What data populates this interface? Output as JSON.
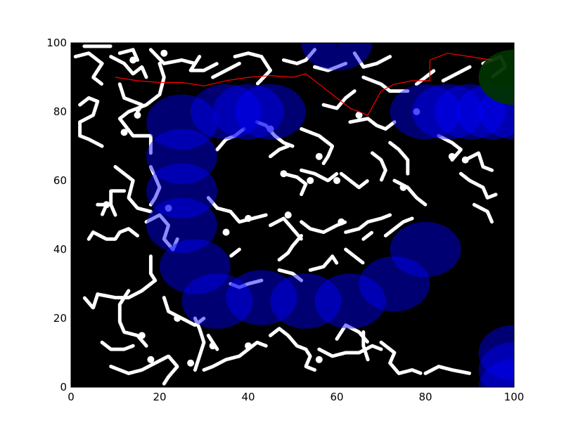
{
  "chart_data": {
    "type": "scatter",
    "xlim": [
      0,
      100
    ],
    "ylim": [
      0,
      100
    ],
    "grid": false,
    "background": "#000000",
    "x_ticks": [
      0,
      20,
      40,
      60,
      80,
      100
    ],
    "y_ticks": [
      0,
      20,
      40,
      60,
      80,
      100
    ],
    "x_tick_labels": [
      "0",
      "20",
      "40",
      "60",
      "80",
      "100"
    ],
    "y_tick_labels": [
      "0",
      "20",
      "40",
      "60",
      "80",
      "100"
    ],
    "obstacle_color": "#ffffff",
    "circle_color": "#0000ff",
    "goal_color": "#003300",
    "path_color": "#ff0000",
    "circle_radius": 8,
    "circles": [
      {
        "x": 60,
        "y": 100
      },
      {
        "x": 25,
        "y": 77
      },
      {
        "x": 35,
        "y": 80
      },
      {
        "x": 40,
        "y": 80
      },
      {
        "x": 45,
        "y": 80
      },
      {
        "x": 25,
        "y": 67
      },
      {
        "x": 25,
        "y": 57
      },
      {
        "x": 25,
        "y": 47
      },
      {
        "x": 28,
        "y": 35
      },
      {
        "x": 33,
        "y": 25
      },
      {
        "x": 43,
        "y": 26
      },
      {
        "x": 53,
        "y": 25
      },
      {
        "x": 63,
        "y": 25
      },
      {
        "x": 73,
        "y": 30
      },
      {
        "x": 80,
        "y": 40
      },
      {
        "x": 80,
        "y": 80
      },
      {
        "x": 85,
        "y": 80
      },
      {
        "x": 90,
        "y": 80
      },
      {
        "x": 95,
        "y": 80
      },
      {
        "x": 100,
        "y": 80
      },
      {
        "x": 100,
        "y": 10
      },
      {
        "x": 100,
        "y": 5
      },
      {
        "x": 100,
        "y": 0
      }
    ],
    "goal": {
      "x": 100,
      "y": 90
    },
    "path": [
      {
        "x": 10,
        "y": 90
      },
      {
        "x": 15,
        "y": 89
      },
      {
        "x": 20,
        "y": 88.5
      },
      {
        "x": 25,
        "y": 88.5
      },
      {
        "x": 30,
        "y": 87.5
      },
      {
        "x": 35,
        "y": 89
      },
      {
        "x": 40,
        "y": 90
      },
      {
        "x": 45,
        "y": 90.5
      },
      {
        "x": 50,
        "y": 90
      },
      {
        "x": 53,
        "y": 91
      },
      {
        "x": 57,
        "y": 87
      },
      {
        "x": 60,
        "y": 84
      },
      {
        "x": 63,
        "y": 81
      },
      {
        "x": 67,
        "y": 79
      },
      {
        "x": 70,
        "y": 86
      },
      {
        "x": 73,
        "y": 88
      },
      {
        "x": 77,
        "y": 89
      },
      {
        "x": 81,
        "y": 89
      },
      {
        "x": 81,
        "y": 95
      },
      {
        "x": 85,
        "y": 97
      },
      {
        "x": 90,
        "y": 96
      },
      {
        "x": 95,
        "y": 95
      }
    ],
    "obstacles": [
      [
        [
          1,
          96
        ],
        [
          4,
          97
        ],
        [
          7,
          94
        ],
        [
          5,
          90
        ],
        [
          7,
          88
        ]
      ],
      [
        [
          3,
          99
        ],
        [
          6,
          99
        ],
        [
          9,
          99
        ]
      ],
      [
        [
          9,
          96
        ],
        [
          12,
          94
        ],
        [
          14,
          91
        ],
        [
          16,
          93
        ],
        [
          17,
          90
        ]
      ],
      [
        [
          2,
          82
        ],
        [
          4,
          84
        ],
        [
          6,
          83
        ],
        [
          5,
          79
        ],
        [
          2,
          77
        ],
        [
          2,
          73
        ],
        [
          4,
          72
        ],
        [
          7,
          70
        ]
      ],
      [
        [
          11,
          97
        ],
        [
          14,
          98
        ],
        [
          15,
          95
        ]
      ],
      [
        [
          18,
          98
        ],
        [
          21,
          94
        ],
        [
          25,
          95
        ],
        [
          28,
          94
        ]
      ],
      [
        [
          20,
          94
        ],
        [
          21,
          90
        ],
        [
          20,
          85
        ],
        [
          17,
          82
        ],
        [
          13,
          80
        ],
        [
          11,
          78
        ],
        [
          14,
          73
        ],
        [
          18,
          73
        ],
        [
          18,
          68
        ]
      ],
      [
        [
          15,
          80
        ],
        [
          16,
          82
        ],
        [
          12,
          84
        ],
        [
          11,
          88
        ]
      ],
      [
        [
          29,
          96
        ],
        [
          27,
          92
        ],
        [
          30,
          92
        ],
        [
          33,
          94
        ]
      ],
      [
        [
          32,
          90
        ],
        [
          35,
          92
        ],
        [
          38,
          94
        ]
      ],
      [
        [
          37,
          96
        ],
        [
          40,
          97
        ],
        [
          43,
          96
        ],
        [
          45,
          92
        ],
        [
          42,
          88
        ]
      ],
      [
        [
          48,
          95
        ],
        [
          51,
          94
        ],
        [
          53,
          95
        ],
        [
          55,
          98
        ]
      ],
      [
        [
          55,
          93
        ],
        [
          58,
          92
        ],
        [
          62,
          94
        ]
      ],
      [
        [
          64,
          97
        ],
        [
          66,
          93
        ],
        [
          69,
          94
        ],
        [
          72,
          96
        ]
      ],
      [
        [
          66,
          90
        ],
        [
          70,
          88
        ],
        [
          72,
          86
        ],
        [
          76,
          86
        ]
      ],
      [
        [
          57,
          82
        ],
        [
          60,
          81
        ],
        [
          62,
          84
        ],
        [
          64,
          86
        ]
      ],
      [
        [
          63,
          77
        ],
        [
          67,
          78
        ],
        [
          69,
          76
        ],
        [
          71,
          75
        ],
        [
          73,
          77
        ]
      ],
      [
        [
          78,
          88
        ],
        [
          80,
          90
        ],
        [
          82,
          92
        ]
      ],
      [
        [
          84,
          89
        ],
        [
          87,
          91
        ],
        [
          90,
          93
        ]
      ],
      [
        [
          93,
          94
        ],
        [
          97,
          96
        ],
        [
          98,
          93
        ],
        [
          95,
          90
        ]
      ],
      [
        [
          10,
          64
        ],
        [
          12,
          62
        ],
        [
          14,
          60
        ],
        [
          13,
          55
        ],
        [
          15,
          52
        ],
        [
          18,
          51
        ]
      ],
      [
        [
          12,
          57
        ],
        [
          9,
          57
        ],
        [
          9,
          53
        ],
        [
          10,
          50
        ]
      ],
      [
        [
          15,
          44
        ],
        [
          13,
          46
        ],
        [
          11,
          45
        ],
        [
          10,
          43
        ],
        [
          8,
          43
        ],
        [
          5,
          45
        ],
        [
          4,
          43
        ]
      ],
      [
        [
          6,
          53
        ],
        [
          8,
          53
        ],
        [
          7,
          50
        ]
      ],
      [
        [
          18,
          64
        ],
        [
          19,
          61
        ],
        [
          20,
          58
        ],
        [
          19,
          55
        ],
        [
          18,
          53
        ]
      ],
      [
        [
          17,
          48
        ],
        [
          20,
          50
        ],
        [
          22,
          47
        ],
        [
          21,
          43
        ],
        [
          23,
          40
        ],
        [
          24,
          43
        ]
      ],
      [
        [
          18,
          38
        ],
        [
          18,
          33
        ],
        [
          19,
          31
        ],
        [
          16,
          28
        ],
        [
          13,
          26
        ],
        [
          10,
          26
        ],
        [
          6,
          27
        ],
        [
          5,
          23
        ],
        [
          3,
          26
        ]
      ],
      [
        [
          13,
          28
        ],
        [
          11,
          24
        ],
        [
          11,
          19
        ],
        [
          12,
          16
        ],
        [
          15,
          15
        ],
        [
          17,
          12
        ]
      ],
      [
        [
          7,
          13
        ],
        [
          9,
          11
        ],
        [
          12,
          11
        ],
        [
          14,
          12
        ]
      ],
      [
        [
          21,
          26
        ],
        [
          22,
          22
        ],
        [
          25,
          20
        ],
        [
          28,
          18
        ],
        [
          30,
          20
        ]
      ],
      [
        [
          28,
          20
        ],
        [
          29,
          17
        ],
        [
          30,
          13
        ],
        [
          29,
          9
        ],
        [
          28,
          5
        ]
      ],
      [
        [
          9,
          6
        ],
        [
          13,
          4
        ],
        [
          16,
          5
        ],
        [
          19,
          7
        ],
        [
          22,
          9
        ],
        [
          24,
          6
        ],
        [
          22,
          3
        ],
        [
          21,
          1
        ]
      ],
      [
        [
          30,
          5
        ],
        [
          32,
          6
        ],
        [
          35,
          8
        ],
        [
          38,
          9
        ],
        [
          40,
          11
        ],
        [
          42,
          13
        ],
        [
          44,
          12
        ]
      ],
      [
        [
          33,
          11
        ],
        [
          32,
          13
        ],
        [
          31,
          15
        ]
      ],
      [
        [
          45,
          15
        ],
        [
          47,
          17
        ],
        [
          49,
          15
        ],
        [
          51,
          12
        ],
        [
          53,
          11
        ],
        [
          54,
          9
        ],
        [
          53,
          6
        ],
        [
          55,
          5
        ]
      ],
      [
        [
          56,
          11
        ],
        [
          59,
          9
        ],
        [
          62,
          10
        ],
        [
          65,
          10
        ],
        [
          68,
          12
        ],
        [
          70,
          11
        ]
      ],
      [
        [
          60,
          14
        ],
        [
          61,
          16
        ],
        [
          62,
          18
        ],
        [
          65,
          16
        ],
        [
          67,
          13
        ]
      ],
      [
        [
          70,
          13
        ],
        [
          73,
          10
        ],
        [
          72,
          7
        ],
        [
          74,
          4
        ],
        [
          77,
          5
        ],
        [
          79,
          4
        ]
      ],
      [
        [
          80,
          4
        ],
        [
          83,
          6
        ],
        [
          86,
          5
        ],
        [
          90,
          4
        ]
      ],
      [
        [
          42,
          77
        ],
        [
          44,
          76
        ],
        [
          46,
          73
        ],
        [
          48,
          71
        ],
        [
          50,
          70
        ]
      ],
      [
        [
          45,
          67
        ],
        [
          47,
          69
        ],
        [
          49,
          70
        ]
      ],
      [
        [
          39,
          75
        ],
        [
          37,
          73
        ],
        [
          35,
          72
        ],
        [
          33,
          69
        ]
      ],
      [
        [
          52,
          75
        ],
        [
          56,
          73
        ],
        [
          59,
          70
        ],
        [
          58,
          67
        ],
        [
          57,
          65
        ]
      ],
      [
        [
          52,
          63
        ],
        [
          55,
          62
        ],
        [
          58,
          60
        ],
        [
          60,
          62
        ]
      ],
      [
        [
          48,
          62
        ],
        [
          51,
          61
        ],
        [
          53,
          59
        ],
        [
          52,
          56
        ]
      ],
      [
        [
          61,
          62
        ],
        [
          63,
          60
        ],
        [
          65,
          58
        ],
        [
          67,
          60
        ]
      ],
      [
        [
          68,
          68
        ],
        [
          70,
          66
        ],
        [
          71,
          63
        ],
        [
          70,
          60
        ]
      ],
      [
        [
          72,
          71
        ],
        [
          74,
          69
        ],
        [
          76,
          66
        ],
        [
          76,
          62
        ]
      ],
      [
        [
          73,
          60
        ],
        [
          76,
          58
        ],
        [
          78,
          55
        ],
        [
          80,
          53
        ]
      ],
      [
        [
          83,
          73
        ],
        [
          86,
          71
        ],
        [
          88,
          69
        ],
        [
          86,
          66
        ]
      ],
      [
        [
          88,
          62
        ],
        [
          90,
          60
        ],
        [
          93,
          58
        ],
        [
          94,
          55
        ],
        [
          96,
          56
        ]
      ],
      [
        [
          89,
          66
        ],
        [
          92,
          68
        ],
        [
          93,
          64
        ],
        [
          95,
          63
        ]
      ],
      [
        [
          91,
          53
        ],
        [
          94,
          51
        ],
        [
          95,
          48
        ]
      ],
      [
        [
          31,
          55
        ],
        [
          33,
          52
        ],
        [
          36,
          51
        ],
        [
          38,
          48
        ],
        [
          41,
          49
        ],
        [
          44,
          50
        ]
      ],
      [
        [
          45,
          47
        ],
        [
          48,
          49
        ],
        [
          50,
          46
        ],
        [
          52,
          43
        ]
      ],
      [
        [
          52,
          48
        ],
        [
          54,
          46
        ],
        [
          57,
          45
        ],
        [
          60,
          47
        ],
        [
          62,
          48
        ]
      ],
      [
        [
          62,
          45
        ],
        [
          65,
          46
        ],
        [
          67,
          48
        ],
        [
          70,
          49
        ],
        [
          72,
          50
        ]
      ],
      [
        [
          66,
          43
        ],
        [
          68,
          45
        ]
      ],
      [
        [
          71,
          44
        ],
        [
          73,
          46
        ],
        [
          75,
          48
        ],
        [
          77,
          49
        ]
      ],
      [
        [
          47,
          37
        ],
        [
          49,
          39
        ],
        [
          50,
          41
        ],
        [
          52,
          44
        ]
      ],
      [
        [
          54,
          34
        ],
        [
          57,
          35
        ],
        [
          59,
          38
        ],
        [
          60,
          36
        ]
      ],
      [
        [
          62,
          40
        ],
        [
          64,
          38
        ],
        [
          66,
          36
        ]
      ],
      [
        [
          38,
          40
        ],
        [
          36,
          38
        ]
      ],
      [
        [
          36,
          30
        ],
        [
          38,
          29
        ],
        [
          40,
          30
        ],
        [
          43,
          31
        ]
      ],
      [
        [
          47,
          34
        ],
        [
          50,
          33
        ],
        [
          52,
          31
        ]
      ],
      [
        [
          67,
          8
        ],
        [
          66,
          12
        ],
        [
          66,
          16
        ]
      ]
    ],
    "blobs": [
      {
        "x": 14,
        "y": 95
      },
      {
        "x": 21,
        "y": 97
      },
      {
        "x": 15,
        "y": 79
      },
      {
        "x": 12,
        "y": 74
      },
      {
        "x": 8,
        "y": 53
      },
      {
        "x": 45,
        "y": 75
      },
      {
        "x": 56,
        "y": 67
      },
      {
        "x": 54,
        "y": 60
      },
      {
        "x": 60,
        "y": 60
      },
      {
        "x": 48,
        "y": 62
      },
      {
        "x": 61,
        "y": 48
      },
      {
        "x": 49,
        "y": 50
      },
      {
        "x": 40,
        "y": 49
      },
      {
        "x": 65,
        "y": 79
      },
      {
        "x": 78,
        "y": 80
      },
      {
        "x": 86,
        "y": 67
      },
      {
        "x": 89,
        "y": 66
      },
      {
        "x": 22,
        "y": 52
      },
      {
        "x": 24,
        "y": 20
      },
      {
        "x": 16,
        "y": 15
      },
      {
        "x": 32,
        "y": 12
      },
      {
        "x": 40,
        "y": 12
      },
      {
        "x": 56,
        "y": 8
      },
      {
        "x": 27,
        "y": 7
      },
      {
        "x": 18,
        "y": 8
      },
      {
        "x": 35,
        "y": 45
      },
      {
        "x": 75,
        "y": 58
      }
    ]
  }
}
